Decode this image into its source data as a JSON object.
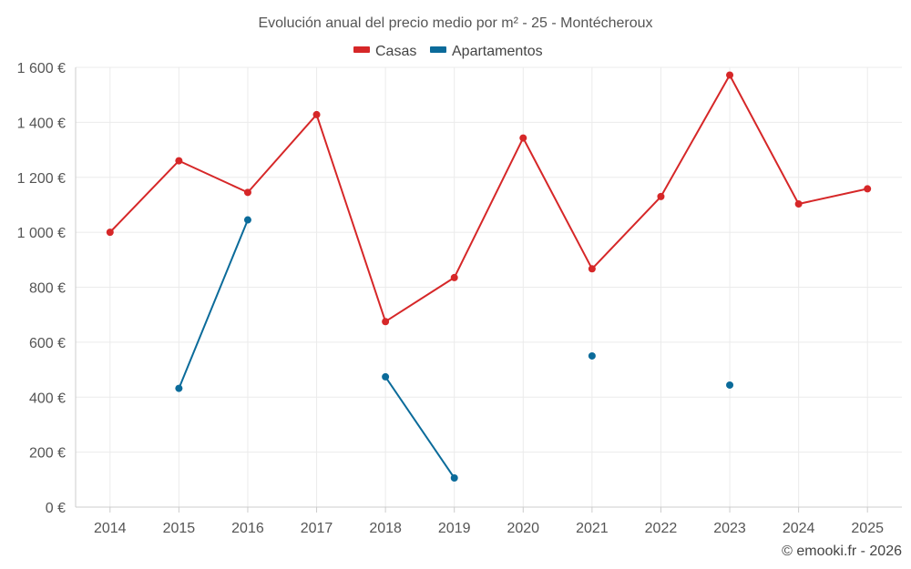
{
  "chart_data": {
    "type": "line",
    "title": "Evolución anual del precio medio por m² - 25 - Montécheroux",
    "categories": [
      "2014",
      "2015",
      "2016",
      "2017",
      "2018",
      "2019",
      "2020",
      "2021",
      "2022",
      "2023",
      "2024",
      "2025"
    ],
    "series": [
      {
        "name": "Casas",
        "color": "#d62728",
        "values": [
          1000,
          1260,
          1145,
          1428,
          675,
          835,
          1343,
          867,
          1130,
          1572,
          1103,
          1158
        ]
      },
      {
        "name": "Apartamentos",
        "color": "#0b6b9a",
        "values": [
          null,
          432,
          1045,
          null,
          474,
          106,
          null,
          550,
          null,
          444,
          null,
          null
        ]
      }
    ],
    "ylim": [
      0,
      1600
    ],
    "yticks": [
      0,
      200,
      400,
      600,
      800,
      1000,
      1200,
      1400,
      1600
    ],
    "ytick_labels": [
      "0 €",
      "200 €",
      "400 €",
      "600 €",
      "800 €",
      "1 000 €",
      "1 200 €",
      "1 400 €",
      "1 600 €"
    ],
    "legend_position": "top-center",
    "grid": true,
    "xlabel": "",
    "ylabel": "",
    "credit": "© emooki.fr - 2026"
  }
}
